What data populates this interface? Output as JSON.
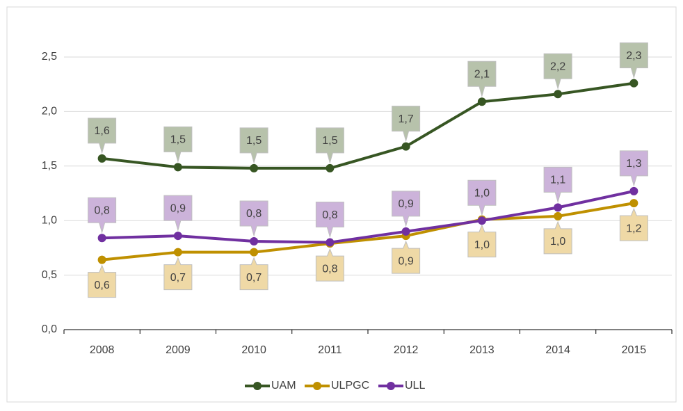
{
  "chart_data": {
    "type": "line",
    "categories": [
      "2008",
      "2009",
      "2010",
      "2011",
      "2012",
      "2013",
      "2014",
      "2015"
    ],
    "series": [
      {
        "name": "UAM",
        "color": "#375623",
        "label_color": "#b7c2ab",
        "values": [
          1.57,
          1.49,
          1.48,
          1.48,
          1.68,
          2.09,
          2.16,
          2.26
        ],
        "value_labels": [
          "1,6",
          "1,5",
          "1,5",
          "1,5",
          "1,7",
          "2,1",
          "2,2",
          "2,3"
        ]
      },
      {
        "name": "ULPGC",
        "color": "#bf9000",
        "label_color": "#efd9a6",
        "values": [
          0.64,
          0.71,
          0.71,
          0.79,
          0.86,
          1.01,
          1.04,
          1.16
        ],
        "value_labels": [
          "0,6",
          "0,7",
          "0,7",
          "0,8",
          "0,9",
          "1,0",
          "1,0",
          "1,2"
        ]
      },
      {
        "name": "ULL",
        "color": "#7030a0",
        "label_color": "#ccb3da",
        "values": [
          0.84,
          0.86,
          0.81,
          0.8,
          0.9,
          1.0,
          1.12,
          1.27
        ],
        "value_labels": [
          "0,8",
          "0,9",
          "0,8",
          "0,8",
          "0,9",
          "1,0",
          "1,1",
          "1,3"
        ]
      }
    ],
    "ylim": [
      0,
      2.5
    ],
    "yticks": [
      {
        "value": 0,
        "label": "0,0"
      },
      {
        "value": 0.5,
        "label": "0,5"
      },
      {
        "value": 1,
        "label": "1,0"
      },
      {
        "value": 1.5,
        "label": "1,5"
      },
      {
        "value": 2,
        "label": "2,0"
      },
      {
        "value": 2.5,
        "label": "2,5"
      }
    ],
    "grid": true,
    "legend": "bottom"
  }
}
